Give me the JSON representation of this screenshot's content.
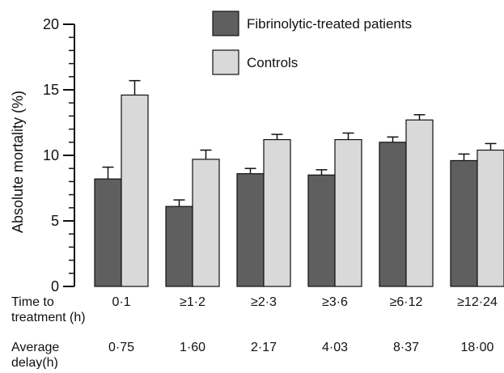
{
  "chart_data": {
    "type": "bar",
    "title": "",
    "ylabel": "Absolute mortality (%)",
    "xlabel": "",
    "ylim": [
      0,
      20
    ],
    "yticks": [
      0,
      5,
      10,
      15,
      20
    ],
    "grid": false,
    "legend_position": "top-right",
    "colors": {
      "Fibrinolytic-treated patients": "#5f5f5f",
      "Controls": "#d9d9d9",
      "edge": "#111111"
    },
    "x_row_label": [
      "Time to",
      "treatment (h)"
    ],
    "categories": [
      "0·1",
      "≥1·2",
      "≥2·3",
      "≥3·6",
      "≥6·12",
      "≥12·24"
    ],
    "delay_row_label": [
      "Average",
      "delay(h)"
    ],
    "average_delay": [
      "0·75",
      "1·60",
      "2·17",
      "4·03",
      "8·37",
      "18·00"
    ],
    "series": [
      {
        "name": "Fibrinolytic-treated patients",
        "values": [
          8.2,
          6.1,
          8.6,
          8.5,
          11.0,
          9.6
        ],
        "error": [
          0.9,
          0.5,
          0.4,
          0.4,
          0.4,
          0.5
        ]
      },
      {
        "name": "Controls",
        "values": [
          14.6,
          9.7,
          11.2,
          11.2,
          12.7,
          10.4
        ],
        "error": [
          1.1,
          0.7,
          0.4,
          0.5,
          0.4,
          0.5
        ]
      }
    ]
  }
}
